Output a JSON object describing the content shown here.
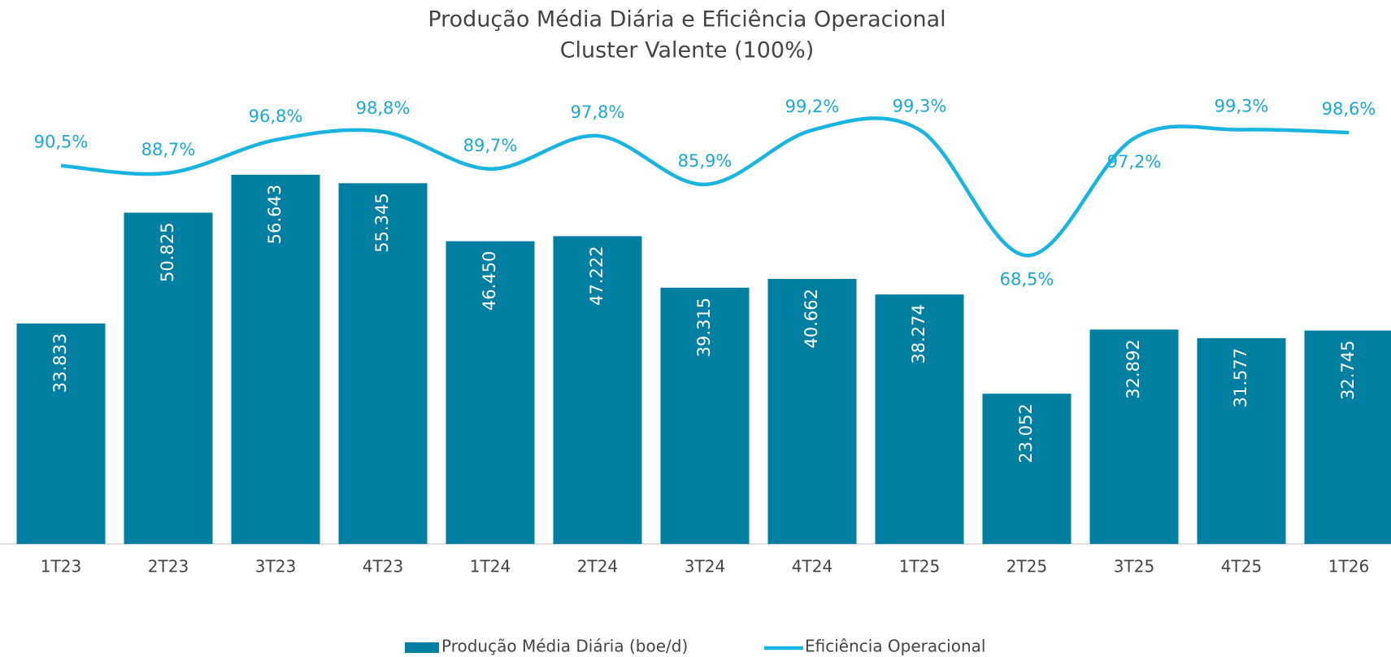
{
  "chart_data": {
    "type": "bar_line",
    "title": "Produção Média Diária e Eficiência Operacional",
    "subtitle": "Cluster Valente (100%)",
    "categories": [
      "1T23",
      "2T23",
      "3T23",
      "4T23",
      "1T24",
      "2T24",
      "3T24",
      "4T24",
      "1T25",
      "2T25",
      "3T25",
      "4T25",
      "1T26"
    ],
    "series": [
      {
        "name": "Produção Média Diária (boe/d)",
        "type": "bar",
        "color": "#007fa3",
        "values": [
          33833,
          50825,
          56643,
          55345,
          46450,
          47222,
          39315,
          40662,
          38274,
          23052,
          32892,
          31577,
          32745
        ],
        "value_labels": [
          "33.833",
          "50.825",
          "56.643",
          "55.345",
          "46.450",
          "47.222",
          "39.315",
          "40.662",
          "38.274",
          "23.052",
          "32.892",
          "31.577",
          "32.745"
        ]
      },
      {
        "name": "Eficiência Operacional",
        "type": "line",
        "axis": "y2",
        "color": "#1ab4e0",
        "values": [
          90.5,
          88.7,
          96.8,
          98.8,
          89.7,
          97.8,
          85.9,
          99.2,
          99.3,
          68.5,
          97.2,
          99.3,
          98.6
        ],
        "value_labels": [
          "90,5%",
          "88,7%",
          "96,8%",
          "98,8%",
          "89,7%",
          "97,8%",
          "85,9%",
          "99,2%",
          "99,3%",
          "68,5%",
          "97,2%",
          "99,3%",
          "98,6%"
        ]
      }
    ],
    "ylim": [
      0,
      60000
    ],
    "y2lim": [
      60,
      100
    ]
  }
}
